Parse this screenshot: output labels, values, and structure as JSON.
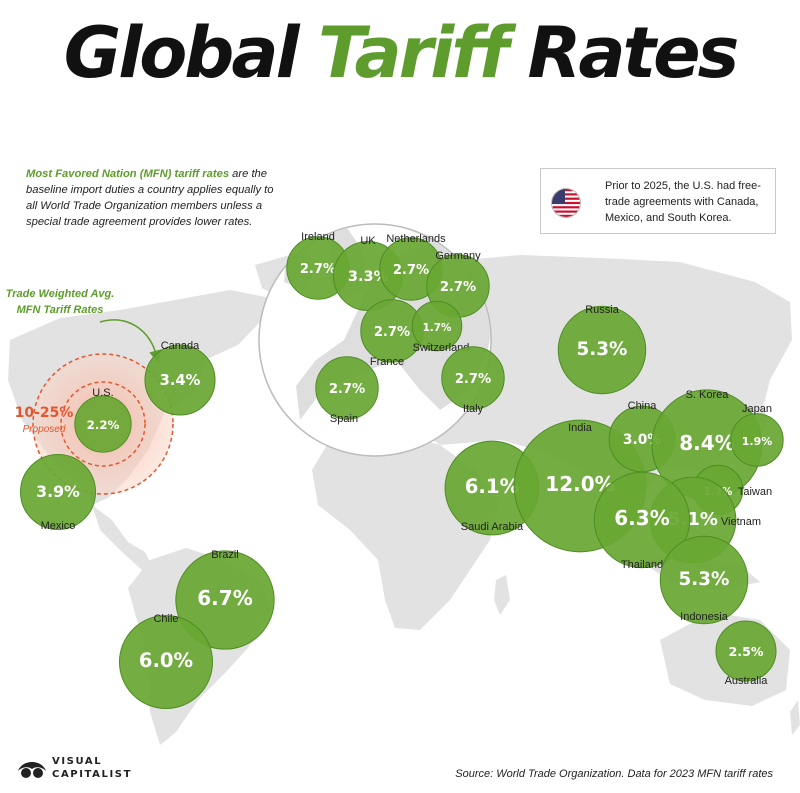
{
  "title": {
    "part1": "Global",
    "part2": "Tariff",
    "part3": "Rates"
  },
  "intro": {
    "highlight": "Most Favored Nation (MFN) tariff rates",
    "text": " are the baseline import duties a country applies equally to all World Trade Organization members unless a special trade agreement provides lower rates."
  },
  "note": {
    "text": "Prior to 2025, the U.S. had free-trade agreements with Canada, Mexico, and South Korea."
  },
  "legend": {
    "line1": "Trade Weighted Avg.",
    "line2": "MFN Tariff Rates"
  },
  "us_proposed": {
    "value": "10-25%",
    "label": "Proposed"
  },
  "countries": [
    {
      "name": "U.S.",
      "value": "2.2%",
      "rate": 2.2
    },
    {
      "name": "Canada",
      "value": "3.4%",
      "rate": 3.4
    },
    {
      "name": "Mexico",
      "value": "3.9%",
      "rate": 3.9
    },
    {
      "name": "Brazil",
      "value": "6.7%",
      "rate": 6.7
    },
    {
      "name": "Chile",
      "value": "6.0%",
      "rate": 6.0
    },
    {
      "name": "Ireland",
      "value": "2.7%",
      "rate": 2.7
    },
    {
      "name": "UK",
      "value": "3.3%",
      "rate": 3.3
    },
    {
      "name": "Netherlands",
      "value": "2.7%",
      "rate": 2.7
    },
    {
      "name": "Germany",
      "value": "2.7%",
      "rate": 2.7
    },
    {
      "name": "France",
      "value": "2.7%",
      "rate": 2.7
    },
    {
      "name": "Switzerland",
      "value": "1.7%",
      "rate": 1.7
    },
    {
      "name": "Spain",
      "value": "2.7%",
      "rate": 2.7
    },
    {
      "name": "Italy",
      "value": "2.7%",
      "rate": 2.7
    },
    {
      "name": "Russia",
      "value": "5.3%",
      "rate": 5.3
    },
    {
      "name": "Saudi Arabia",
      "value": "6.1%",
      "rate": 6.1
    },
    {
      "name": "India",
      "value": "12.0%",
      "rate": 12.0
    },
    {
      "name": "China",
      "value": "3.0%",
      "rate": 3.0
    },
    {
      "name": "S. Korea",
      "value": "8.4%",
      "rate": 8.4
    },
    {
      "name": "Japan",
      "value": "1.9%",
      "rate": 1.9
    },
    {
      "name": "Taiwan",
      "value": "1.7%",
      "rate": 1.7
    },
    {
      "name": "Vietnam",
      "value": "5.1%",
      "rate": 5.1
    },
    {
      "name": "Thailand",
      "value": "6.3%",
      "rate": 6.3
    },
    {
      "name": "Indonesia",
      "value": "5.3%",
      "rate": 5.3
    },
    {
      "name": "Australia",
      "value": "2.5%",
      "rate": 2.5
    }
  ],
  "colors": {
    "accent": "#5e9d2d",
    "bubble": "#69a834",
    "proposed": "#e4572e",
    "land": "#e2e2e2"
  },
  "source": "Source: World Trade Organization. Data for 2023 MFN tariff rates",
  "logo": {
    "line1": "VISUAL",
    "line2": "CAPITALIST"
  }
}
